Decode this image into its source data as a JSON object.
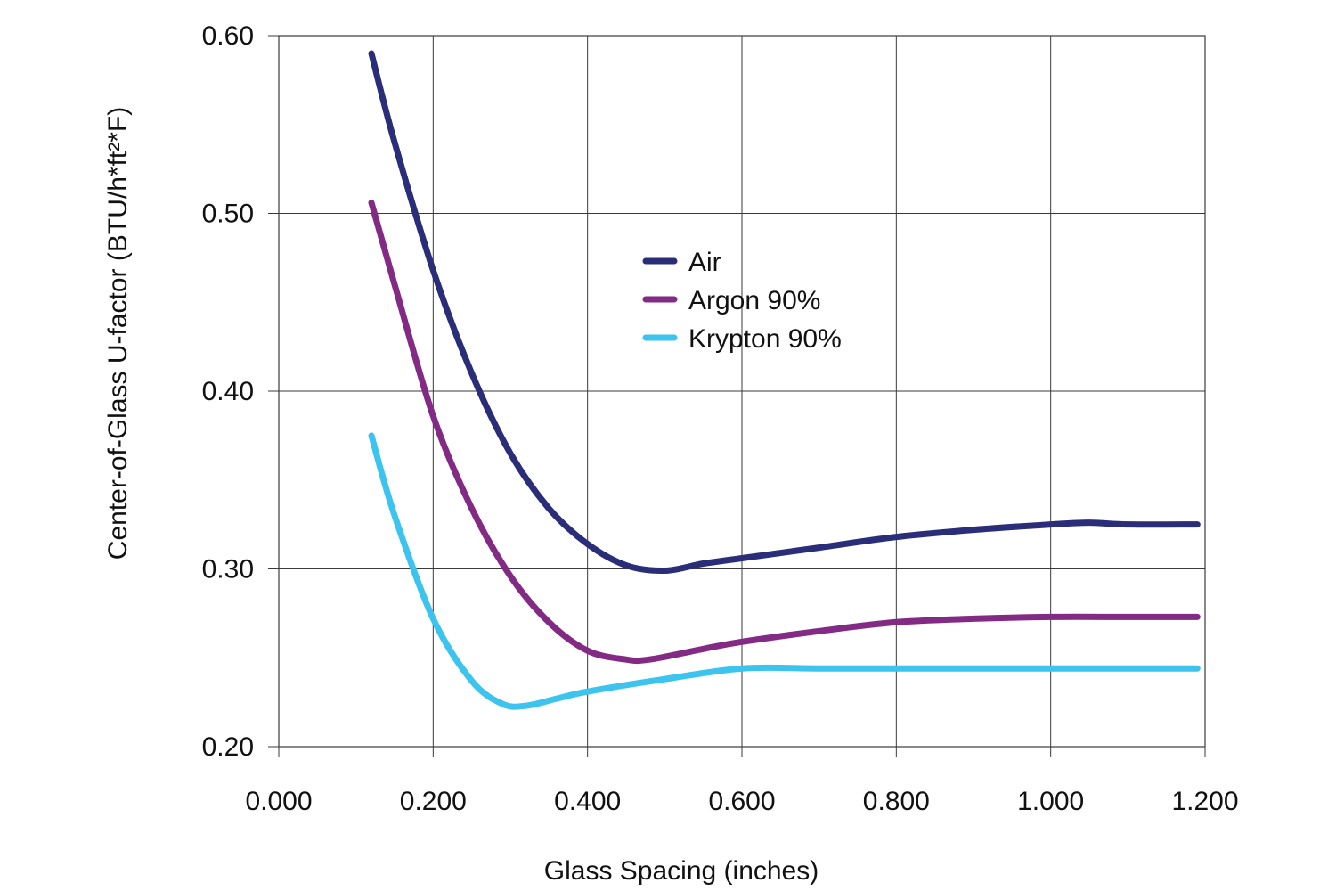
{
  "chart_data": {
    "type": "line",
    "title": "",
    "xlabel": "Glass Spacing (inches)",
    "ylabel": "Center-of-Glass U-factor (BTU/h*ft²*F)",
    "xlim": [
      0.0,
      1.2
    ],
    "ylim": [
      0.2,
      0.6
    ],
    "x_ticks": [
      0.0,
      0.2,
      0.4,
      0.6,
      0.8,
      1.0,
      1.2
    ],
    "x_tick_labels": [
      "0.000",
      "0.200",
      "0.400",
      "0.600",
      "0.800",
      "1.000",
      "1.200"
    ],
    "y_ticks": [
      0.2,
      0.3,
      0.4,
      0.5,
      0.6
    ],
    "y_tick_labels": [
      "0.20",
      "0.30",
      "0.40",
      "0.50",
      "0.60"
    ],
    "grid": true,
    "legend_position": "upper-center",
    "series": [
      {
        "name": "Air",
        "color": "#2a2d78",
        "x": [
          0.12,
          0.15,
          0.2,
          0.25,
          0.3,
          0.35,
          0.4,
          0.45,
          0.5,
          0.55,
          0.6,
          0.7,
          0.8,
          0.9,
          1.0,
          1.05,
          1.1,
          1.19
        ],
        "y": [
          0.59,
          0.54,
          0.468,
          0.41,
          0.365,
          0.334,
          0.314,
          0.302,
          0.299,
          0.303,
          0.306,
          0.312,
          0.318,
          0.322,
          0.325,
          0.326,
          0.325,
          0.325
        ]
      },
      {
        "name": "Argon 90%",
        "color": "#822a84",
        "x": [
          0.12,
          0.15,
          0.2,
          0.25,
          0.3,
          0.35,
          0.4,
          0.45,
          0.48,
          0.55,
          0.6,
          0.7,
          0.8,
          0.9,
          1.0,
          1.1,
          1.19
        ],
        "y": [
          0.506,
          0.46,
          0.386,
          0.334,
          0.296,
          0.27,
          0.254,
          0.249,
          0.249,
          0.255,
          0.259,
          0.265,
          0.27,
          0.272,
          0.273,
          0.273,
          0.273
        ]
      },
      {
        "name": "Krypton 90%",
        "color": "#3cc4ef",
        "x": [
          0.12,
          0.15,
          0.2,
          0.25,
          0.29,
          0.32,
          0.36,
          0.4,
          0.5,
          0.6,
          0.7,
          0.8,
          1.0,
          1.19
        ],
        "y": [
          0.375,
          0.33,
          0.272,
          0.237,
          0.224,
          0.223,
          0.227,
          0.231,
          0.238,
          0.244,
          0.244,
          0.244,
          0.244,
          0.244
        ]
      }
    ]
  }
}
